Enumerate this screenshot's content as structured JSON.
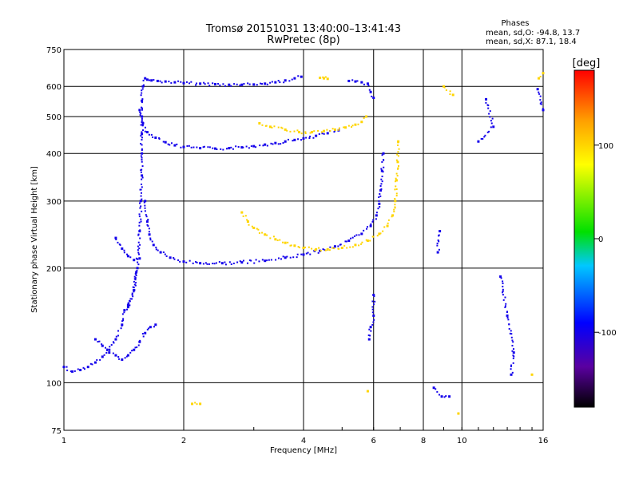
{
  "chart_data": {
    "type": "scatter",
    "title": "Tromsø 20151031 13:40:00–13:41:43",
    "subtitle": "RwPretec (8p)",
    "xlabel": "Frequency [MHz]",
    "ylabel": "Stationary phase Virtual Height [km]",
    "x_scale": "log",
    "y_scale": "log",
    "xlim": [
      1,
      16
    ],
    "ylim": [
      75,
      750
    ],
    "x_ticks": [
      1,
      2,
      4,
      6,
      8,
      10,
      16
    ],
    "y_ticks": [
      75,
      100,
      200,
      300,
      400,
      500,
      600,
      750
    ],
    "grid": true,
    "legend": {
      "header": "Phases",
      "lines": [
        "mean, sd,O: -94.8, 13.7",
        "mean, sd,X: 87.1, 18.4"
      ]
    },
    "colorbar": {
      "label": "[deg]",
      "range": [
        -180,
        180
      ],
      "ticks": [
        100,
        0,
        -100
      ]
    },
    "series": [
      {
        "phase": -100,
        "points": [
          [
            1.62,
            625
          ],
          [
            1.66,
            622
          ],
          [
            1.72,
            620
          ],
          [
            1.8,
            618
          ],
          [
            1.9,
            615
          ],
          [
            2.0,
            612
          ],
          [
            2.2,
            610
          ],
          [
            2.4,
            608
          ],
          [
            2.6,
            606
          ],
          [
            2.8,
            606
          ],
          [
            3.0,
            607
          ],
          [
            3.2,
            610
          ],
          [
            3.4,
            615
          ],
          [
            3.6,
            622
          ],
          [
            3.8,
            630
          ],
          [
            3.95,
            636
          ]
        ]
      },
      {
        "phase": -100,
        "points": [
          [
            1.55,
            520
          ],
          [
            1.58,
            480
          ],
          [
            1.62,
            455
          ],
          [
            1.7,
            440
          ],
          [
            1.8,
            428
          ],
          [
            1.9,
            420
          ],
          [
            2.0,
            416
          ],
          [
            2.2,
            413
          ],
          [
            2.4,
            412
          ],
          [
            2.6,
            413
          ],
          [
            2.8,
            415
          ],
          [
            3.0,
            418
          ],
          [
            3.2,
            422
          ],
          [
            3.4,
            426
          ],
          [
            3.6,
            430
          ],
          [
            3.8,
            434
          ],
          [
            4.0,
            438
          ],
          [
            4.3,
            445
          ],
          [
            4.6,
            452
          ],
          [
            4.9,
            460
          ]
        ]
      },
      {
        "phase": -100,
        "points": [
          [
            1.45,
            160
          ],
          [
            1.5,
            175
          ],
          [
            1.53,
            200
          ],
          [
            1.55,
            250
          ],
          [
            1.56,
            300
          ],
          [
            1.57,
            350
          ],
          [
            1.57,
            400
          ],
          [
            1.57,
            450
          ],
          [
            1.57,
            500
          ],
          [
            1.57,
            550
          ],
          [
            1.58,
            600
          ],
          [
            1.6,
            630
          ]
        ]
      },
      {
        "phase": -100,
        "points": [
          [
            1.6,
            300
          ],
          [
            1.62,
            265
          ],
          [
            1.64,
            245
          ],
          [
            1.68,
            230
          ],
          [
            1.75,
            220
          ],
          [
            1.85,
            213
          ],
          [
            2.0,
            208
          ],
          [
            2.2,
            206
          ],
          [
            2.5,
            206
          ],
          [
            2.8,
            207
          ],
          [
            3.2,
            209
          ],
          [
            3.6,
            213
          ],
          [
            4.0,
            217
          ],
          [
            4.4,
            222
          ],
          [
            4.8,
            228
          ],
          [
            5.2,
            236
          ],
          [
            5.6,
            246
          ],
          [
            5.9,
            258
          ],
          [
            6.1,
            275
          ],
          [
            6.2,
            295
          ],
          [
            6.25,
            320
          ],
          [
            6.3,
            360
          ],
          [
            6.35,
            400
          ]
        ]
      },
      {
        "phase": -100,
        "points": [
          [
            1.0,
            110
          ],
          [
            1.05,
            107
          ],
          [
            1.1,
            108
          ],
          [
            1.15,
            110
          ],
          [
            1.2,
            113
          ],
          [
            1.25,
            117
          ],
          [
            1.3,
            122
          ],
          [
            1.35,
            130
          ],
          [
            1.4,
            142
          ],
          [
            1.42,
            155
          ],
          [
            1.45,
            158
          ],
          [
            1.5,
            175
          ],
          [
            1.52,
            195
          ]
        ]
      },
      {
        "phase": -100,
        "points": [
          [
            1.2,
            130
          ],
          [
            1.25,
            125
          ],
          [
            1.3,
            120
          ],
          [
            1.35,
            118
          ],
          [
            1.4,
            115
          ],
          [
            1.45,
            118
          ],
          [
            1.5,
            122
          ],
          [
            1.55,
            128
          ],
          [
            1.6,
            135
          ],
          [
            1.65,
            140
          ],
          [
            1.7,
            142
          ]
        ]
      },
      {
        "phase": -100,
        "points": [
          [
            1.35,
            240
          ],
          [
            1.4,
            225
          ],
          [
            1.45,
            215
          ],
          [
            1.5,
            210
          ],
          [
            1.55,
            212
          ]
        ]
      },
      {
        "phase": -100,
        "points": [
          [
            5.2,
            620
          ],
          [
            5.4,
            618
          ],
          [
            5.6,
            615
          ],
          [
            5.8,
            610
          ],
          [
            5.9,
            580
          ],
          [
            6.0,
            560
          ]
        ]
      },
      {
        "phase": 100,
        "points": [
          [
            2.8,
            280
          ],
          [
            2.9,
            265
          ],
          [
            3.0,
            255
          ],
          [
            3.2,
            245
          ],
          [
            3.4,
            238
          ],
          [
            3.6,
            233
          ],
          [
            3.8,
            229
          ],
          [
            4.0,
            226
          ],
          [
            4.3,
            224
          ],
          [
            4.6,
            224
          ],
          [
            5.0,
            226
          ],
          [
            5.4,
            230
          ],
          [
            5.8,
            236
          ],
          [
            6.2,
            246
          ],
          [
            6.5,
            258
          ],
          [
            6.7,
            275
          ],
          [
            6.8,
            300
          ],
          [
            6.85,
            340
          ],
          [
            6.9,
            380
          ],
          [
            6.92,
            430
          ]
        ]
      },
      {
        "phase": 100,
        "points": [
          [
            3.1,
            480
          ],
          [
            3.3,
            470
          ],
          [
            3.6,
            462
          ],
          [
            3.9,
            455
          ],
          [
            4.2,
            455
          ],
          [
            4.5,
            458
          ],
          [
            4.8,
            462
          ],
          [
            5.1,
            468
          ],
          [
            5.4,
            476
          ],
          [
            5.6,
            484
          ],
          [
            5.75,
            500
          ]
        ]
      },
      {
        "phase": 100,
        "points": [
          [
            4.4,
            632
          ],
          [
            4.5,
            630
          ],
          [
            4.6,
            628
          ]
        ]
      },
      {
        "phase": -100,
        "points": [
          [
            11.5,
            555
          ],
          [
            12.0,
            470
          ],
          [
            11.0,
            430
          ],
          [
            12.5,
            190
          ],
          [
            13.0,
            150
          ],
          [
            13.5,
            120
          ],
          [
            13.3,
            105
          ],
          [
            15.5,
            590
          ],
          [
            16.0,
            520
          ]
        ]
      },
      {
        "phase": 100,
        "points": [
          [
            9.0,
            600
          ],
          [
            9.5,
            570
          ],
          [
            15.6,
            630
          ],
          [
            16.0,
            650
          ],
          [
            15.0,
            105
          ],
          [
            2.1,
            88
          ],
          [
            2.2,
            88
          ],
          [
            9.8,
            83
          ],
          [
            5.8,
            95
          ]
        ]
      },
      {
        "phase": -100,
        "points": [
          [
            8.8,
            250
          ],
          [
            8.7,
            220
          ],
          [
            8.5,
            97
          ],
          [
            8.9,
            92
          ],
          [
            9.3,
            92
          ],
          [
            6.0,
            170
          ],
          [
            6.0,
            150
          ],
          [
            5.9,
            140
          ],
          [
            5.85,
            130
          ]
        ]
      }
    ]
  }
}
